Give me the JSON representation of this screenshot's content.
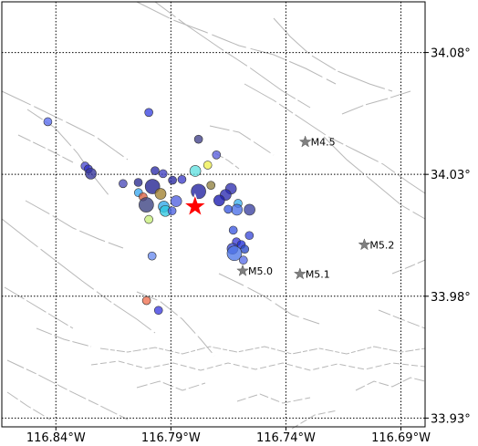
{
  "map": {
    "lon_range": [
      -116.8635,
      -116.6795
    ],
    "lat_range": [
      33.9264,
      34.1008
    ],
    "x_ticks": [
      {
        "value": -116.84,
        "label": "116.84°W"
      },
      {
        "value": -116.79,
        "label": "116.79°W"
      },
      {
        "value": -116.74,
        "label": "116.74°W"
      },
      {
        "value": -116.69,
        "label": "116.69°W"
      }
    ],
    "y_ticks": [
      {
        "value": 34.08,
        "label": "34.08°"
      },
      {
        "value": 34.03,
        "label": "34.03°"
      },
      {
        "value": 33.98,
        "label": "33.98°"
      },
      {
        "value": 33.93,
        "label": "33.93°"
      }
    ],
    "grid": "dotted",
    "colors": {
      "fault": "#b8b8b8",
      "mainshock": "#ff0000",
      "historic_star": "#808080",
      "event_edge": "#333333"
    },
    "mainshock": {
      "lon": -116.7795,
      "lat": 34.0168
    },
    "historic": [
      {
        "lon": -116.7316,
        "lat": 34.0433,
        "label": "M4.5"
      },
      {
        "lon": -116.7059,
        "lat": 34.0011,
        "label": "M5.2"
      },
      {
        "lon": -116.7588,
        "lat": 33.9904,
        "label": "M5.0"
      },
      {
        "lon": -116.7339,
        "lat": 33.9891,
        "label": "M5.1"
      }
    ],
    "events": [
      {
        "lon": -116.8435,
        "lat": 34.0516,
        "s": 1,
        "c": "#5a6df0"
      },
      {
        "lon": -116.7996,
        "lat": 34.0554,
        "s": 1,
        "c": "#3a44e0"
      },
      {
        "lon": -116.778,
        "lat": 34.0444,
        "s": 1,
        "c": "#40408a"
      },
      {
        "lon": -116.7702,
        "lat": 34.038,
        "s": 1,
        "c": "#5a5fdc"
      },
      {
        "lon": -116.774,
        "lat": 34.0338,
        "s": 1,
        "c": "#f0f050"
      },
      {
        "lon": -116.8273,
        "lat": 34.0334,
        "s": 1,
        "c": "#4a4ad0"
      },
      {
        "lon": -116.8259,
        "lat": 34.0322,
        "s": 1,
        "c": "#3030c8"
      },
      {
        "lon": -116.8248,
        "lat": 34.0303,
        "s": 2,
        "c": "#333399"
      },
      {
        "lon": -116.7969,
        "lat": 34.0315,
        "s": 1,
        "c": "#2c2ca8"
      },
      {
        "lon": -116.7934,
        "lat": 34.0303,
        "s": 1,
        "c": "#4040c0"
      },
      {
        "lon": -116.7794,
        "lat": 34.0314,
        "s": 2,
        "c": "#60e0e0"
      },
      {
        "lon": -116.7852,
        "lat": 34.0279,
        "s": 1,
        "c": "#3c3cc8"
      },
      {
        "lon": -116.8042,
        "lat": 34.0267,
        "s": 1,
        "c": "#2a2a90"
      },
      {
        "lon": -116.8108,
        "lat": 34.0262,
        "s": 1,
        "c": "#4a4ab8"
      },
      {
        "lon": -116.7893,
        "lat": 34.0276,
        "s": 1,
        "c": "#2828a0"
      },
      {
        "lon": -116.798,
        "lat": 34.025,
        "s": 3,
        "c": "#202090"
      },
      {
        "lon": -116.8041,
        "lat": 34.0225,
        "s": 1,
        "c": "#3aa8f0"
      },
      {
        "lon": -116.8021,
        "lat": 34.0208,
        "s": 1,
        "c": "#d86040"
      },
      {
        "lon": -116.7945,
        "lat": 34.022,
        "s": 2,
        "c": "#a08030"
      },
      {
        "lon": -116.778,
        "lat": 34.023,
        "s": 3,
        "c": "#2020a0"
      },
      {
        "lon": -116.7726,
        "lat": 34.0255,
        "s": 1,
        "c": "#908040"
      },
      {
        "lon": -116.7639,
        "lat": 34.0241,
        "s": 2,
        "c": "#3030b0"
      },
      {
        "lon": -116.7662,
        "lat": 34.0216,
        "s": 2,
        "c": "#2a2ab0"
      },
      {
        "lon": -116.769,
        "lat": 34.0193,
        "s": 2,
        "c": "#1a1ab0"
      },
      {
        "lon": -116.7608,
        "lat": 34.0181,
        "s": 1,
        "c": "#3bb0ee"
      },
      {
        "lon": -116.7877,
        "lat": 34.019,
        "s": 2,
        "c": "#5060e0"
      },
      {
        "lon": -116.8007,
        "lat": 34.0175,
        "s": 3,
        "c": "#3a4080"
      },
      {
        "lon": -116.7931,
        "lat": 34.0168,
        "s": 2,
        "c": "#30a8e8"
      },
      {
        "lon": -116.7924,
        "lat": 34.015,
        "s": 2,
        "c": "#30c8e0"
      },
      {
        "lon": -116.7895,
        "lat": 34.015,
        "s": 1,
        "c": "#4a60e0"
      },
      {
        "lon": -116.7613,
        "lat": 34.0155,
        "s": 2,
        "c": "#4a70e8"
      },
      {
        "lon": -116.7558,
        "lat": 34.0155,
        "s": 2,
        "c": "#3a40a0"
      },
      {
        "lon": -116.7651,
        "lat": 34.0157,
        "s": 1,
        "c": "#3a58e0"
      },
      {
        "lon": -116.7996,
        "lat": 34.0115,
        "s": 1,
        "c": "#c8f07a"
      },
      {
        "lon": -116.7629,
        "lat": 34.0071,
        "s": 1,
        "c": "#3c58e0"
      },
      {
        "lon": -116.7559,
        "lat": 34.0049,
        "s": 1,
        "c": "#3c4cd8"
      },
      {
        "lon": -116.7615,
        "lat": 34.0023,
        "s": 1,
        "c": "#3a3ad8"
      },
      {
        "lon": -116.7594,
        "lat": 34.0012,
        "s": 1,
        "c": "#2030d8"
      },
      {
        "lon": -116.7632,
        "lat": 33.9995,
        "s": 2,
        "c": "#3848d0"
      },
      {
        "lon": -116.7579,
        "lat": 33.9993,
        "s": 1,
        "c": "#2a4ac8"
      },
      {
        "lon": -116.7624,
        "lat": 33.9976,
        "s": 3,
        "c": "#5078e8"
      },
      {
        "lon": -116.7585,
        "lat": 33.9948,
        "s": 1,
        "c": "#5a6ee8"
      },
      {
        "lon": -116.7982,
        "lat": 33.9965,
        "s": 1,
        "c": "#6a8cf0"
      },
      {
        "lon": -116.8006,
        "lat": 33.9782,
        "s": 1,
        "c": "#f07050"
      },
      {
        "lon": -116.7954,
        "lat": 33.9742,
        "s": 1,
        "c": "#3c3ce0"
      }
    ]
  }
}
